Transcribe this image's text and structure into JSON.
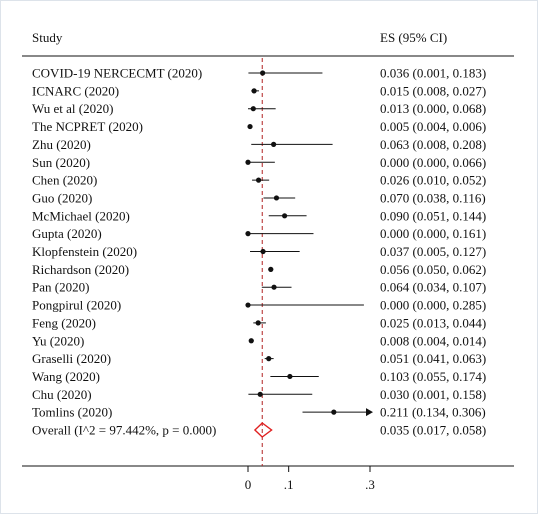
{
  "chart_data": {
    "type": "forest",
    "header_study": "Study",
    "header_es": "ES (95% CI)",
    "xlim": [
      0,
      0.3
    ],
    "xticks": [
      {
        "value": 0,
        "label": "0"
      },
      {
        "value": 0.1,
        "label": ".1"
      },
      {
        "value": 0.3,
        "label": ".3"
      }
    ],
    "reference_line": 0.035,
    "studies": [
      {
        "study": "COVID-19 NERCECMT  (2020)",
        "es": 0.036,
        "lo": 0.001,
        "hi": 0.183,
        "ci_text": "0.036 (0.001, 0.183)"
      },
      {
        "study": "ICNARC (2020)",
        "es": 0.015,
        "lo": 0.008,
        "hi": 0.027,
        "ci_text": "0.015 (0.008, 0.027)"
      },
      {
        "study": "Wu et al (2020)",
        "es": 0.013,
        "lo": 0.0,
        "hi": 0.068,
        "ci_text": "0.013 (0.000, 0.068)"
      },
      {
        "study": "The NCPRET  (2020)",
        "es": 0.005,
        "lo": 0.004,
        "hi": 0.006,
        "ci_text": "0.005 (0.004, 0.006)"
      },
      {
        "study": "Zhu  (2020)",
        "es": 0.063,
        "lo": 0.008,
        "hi": 0.208,
        "ci_text": "0.063 (0.008, 0.208)"
      },
      {
        "study": "Sun (2020)",
        "es": 0.0,
        "lo": 0.0,
        "hi": 0.066,
        "ci_text": "0.000 (0.000, 0.066)"
      },
      {
        "study": "Chen (2020)",
        "es": 0.026,
        "lo": 0.01,
        "hi": 0.052,
        "ci_text": "0.026 (0.010, 0.052)"
      },
      {
        "study": "Guo (2020)",
        "es": 0.07,
        "lo": 0.038,
        "hi": 0.116,
        "ci_text": "0.070 (0.038, 0.116)"
      },
      {
        "study": "McMichael  (2020)",
        "es": 0.09,
        "lo": 0.051,
        "hi": 0.144,
        "ci_text": "0.090 (0.051, 0.144)"
      },
      {
        "study": "Gupta  (2020)",
        "es": 0.0,
        "lo": 0.0,
        "hi": 0.161,
        "ci_text": "0.000 (0.000, 0.161)"
      },
      {
        "study": "Klopfenstein  (2020)",
        "es": 0.037,
        "lo": 0.005,
        "hi": 0.127,
        "ci_text": "0.037 (0.005, 0.127)"
      },
      {
        "study": "Richardson  (2020)",
        "es": 0.056,
        "lo": 0.05,
        "hi": 0.062,
        "ci_text": "0.056 (0.050, 0.062)"
      },
      {
        "study": "Pan  (2020)",
        "es": 0.064,
        "lo": 0.034,
        "hi": 0.107,
        "ci_text": "0.064 (0.034, 0.107)"
      },
      {
        "study": "Pongpirul  (2020)",
        "es": 0.0,
        "lo": 0.0,
        "hi": 0.285,
        "ci_text": "0.000 (0.000, 0.285)"
      },
      {
        "study": "Feng (2020)",
        "es": 0.025,
        "lo": 0.013,
        "hi": 0.044,
        "ci_text": "0.025 (0.013, 0.044)"
      },
      {
        "study": "Yu  (2020)",
        "es": 0.008,
        "lo": 0.004,
        "hi": 0.014,
        "ci_text": "0.008 (0.004, 0.014)"
      },
      {
        "study": "Graselli  (2020)",
        "es": 0.051,
        "lo": 0.041,
        "hi": 0.063,
        "ci_text": "0.051 (0.041, 0.063)"
      },
      {
        "study": "Wang (2020)",
        "es": 0.103,
        "lo": 0.055,
        "hi": 0.174,
        "ci_text": "0.103 (0.055, 0.174)"
      },
      {
        "study": "Chu  (2020)",
        "es": 0.03,
        "lo": 0.001,
        "hi": 0.158,
        "ci_text": "0.030 (0.001, 0.158)"
      },
      {
        "study": "Tomlins (2020)",
        "es": 0.211,
        "lo": 0.134,
        "hi": 0.306,
        "ci_text": "0.211 (0.134, 0.306)",
        "arrow_right": true
      }
    ],
    "overall": {
      "label": "Overall  (I^2 = 97.442%, p = 0.000)",
      "es": 0.035,
      "lo": 0.017,
      "hi": 0.058,
      "ci_text": "0.035 (0.017, 0.058)"
    },
    "colors": {
      "marker": "#111111",
      "reference_line": "#b22222",
      "overall_diamond": "#e02020",
      "axis": "#111111"
    }
  }
}
